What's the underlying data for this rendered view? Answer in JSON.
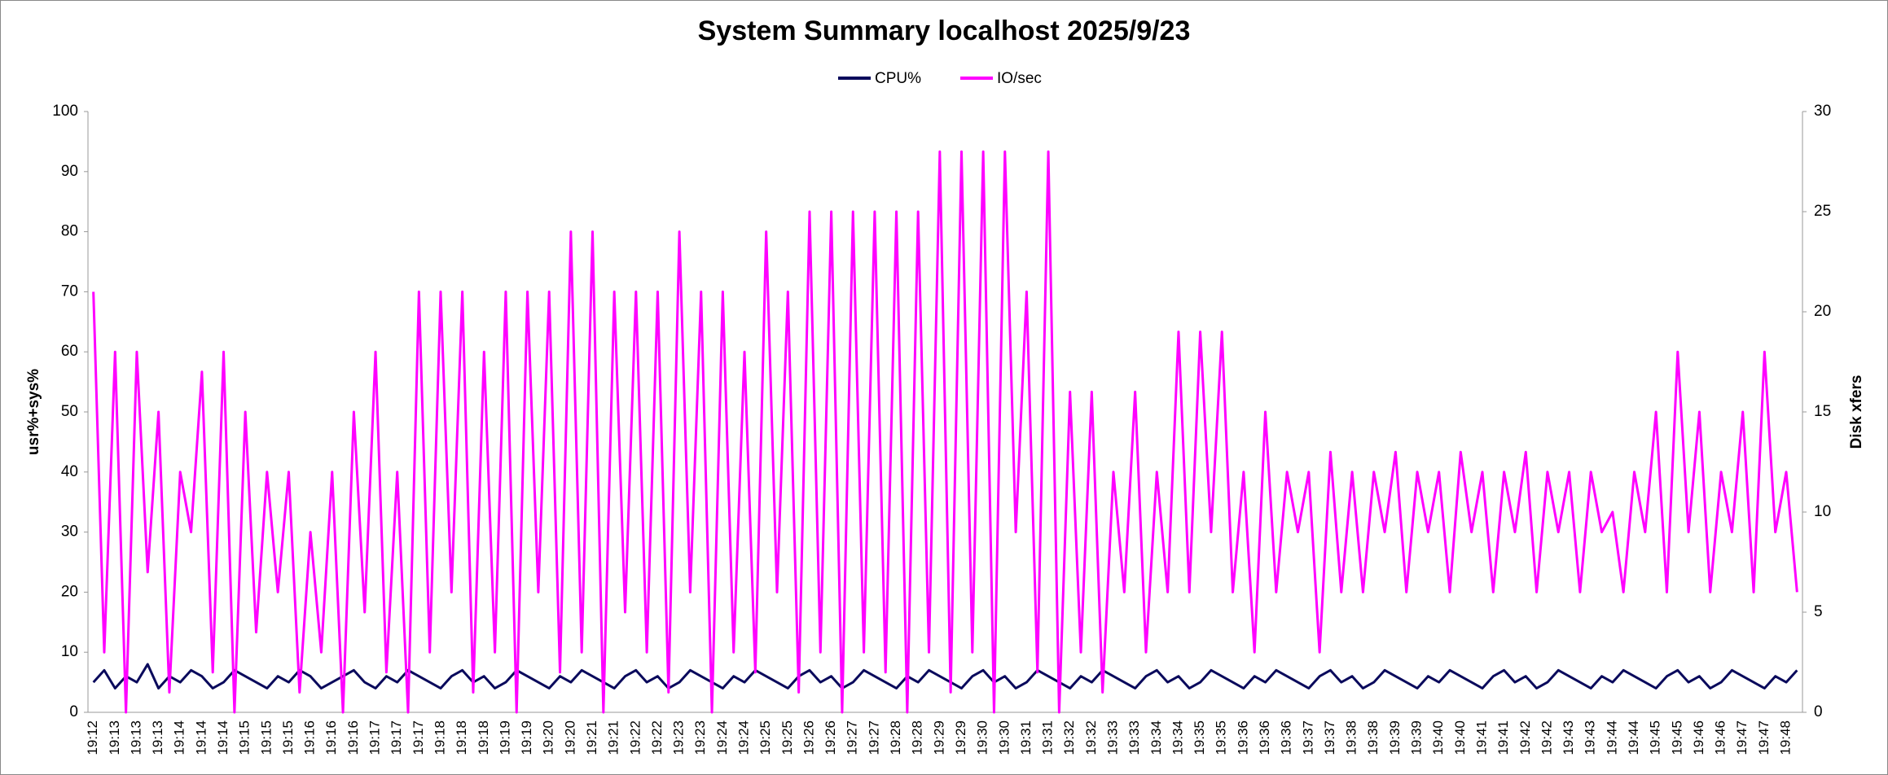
{
  "chart_data": {
    "type": "line",
    "title": "System Summary localhost  2025/9/23",
    "y_label": "usr%+sys%",
    "y2_label": "Disk xfers",
    "ylim": [
      0,
      100
    ],
    "yticks": [
      0,
      10,
      20,
      30,
      40,
      50,
      60,
      70,
      80,
      90,
      100
    ],
    "y2lim": [
      0,
      30
    ],
    "y2ticks": [
      0,
      5,
      10,
      15,
      20,
      25,
      30
    ],
    "grid": false,
    "legend": "top",
    "categories": [
      "19:12",
      null,
      "19:13",
      null,
      "19:13",
      null,
      "19:13",
      null,
      "19:14",
      null,
      "19:14",
      null,
      "19:14",
      null,
      "19:15",
      null,
      "19:15",
      null,
      "19:15",
      null,
      "19:16",
      null,
      "19:16",
      null,
      "19:16",
      null,
      "19:17",
      null,
      "19:17",
      null,
      "19:17",
      null,
      "19:18",
      null,
      "19:18",
      null,
      "19:18",
      null,
      "19:19",
      null,
      "19:19",
      null,
      "19:20",
      null,
      "19:20",
      null,
      "19:21",
      null,
      "19:21",
      null,
      "19:22",
      null,
      "19:22",
      null,
      "19:23",
      null,
      "19:23",
      null,
      "19:24",
      null,
      "19:24",
      null,
      "19:25",
      null,
      "19:25",
      null,
      "19:26",
      null,
      "19:26",
      null,
      "19:27",
      null,
      "19:27",
      null,
      "19:28",
      null,
      "19:28",
      null,
      "19:29",
      null,
      "19:29",
      null,
      "19:30",
      null,
      "19:30",
      null,
      "19:31",
      null,
      "19:31",
      null,
      "19:32",
      null,
      "19:32",
      null,
      "19:33",
      null,
      "19:33",
      null,
      "19:34",
      null,
      "19:34",
      null,
      "19:35",
      null,
      "19:35",
      null,
      "19:36",
      null,
      "19:36",
      null,
      "19:36",
      null,
      "19:37",
      null,
      "19:37",
      null,
      "19:38",
      null,
      "19:38",
      null,
      "19:39",
      null,
      "19:39",
      null,
      "19:40",
      null,
      "19:40",
      null,
      "19:41",
      null,
      "19:41",
      null,
      "19:42",
      null,
      "19:42",
      null,
      "19:43",
      null,
      "19:43",
      null,
      "19:44",
      null,
      "19:44",
      null,
      "19:45",
      null,
      "19:45",
      null,
      "19:46",
      null,
      "19:46",
      null,
      "19:47",
      null,
      "19:47",
      null,
      "19:48",
      null
    ],
    "series": [
      {
        "name": "CPU%",
        "color": "#0a0a5c",
        "axis": "y",
        "values": [
          5,
          7,
          4,
          6,
          5,
          8,
          4,
          6,
          5,
          7,
          6,
          4,
          5,
          7,
          6,
          5,
          4,
          6,
          5,
          7,
          6,
          4,
          5,
          6,
          7,
          5,
          4,
          6,
          5,
          7,
          6,
          5,
          4,
          6,
          7,
          5,
          6,
          4,
          5,
          7,
          6,
          5,
          4,
          6,
          5,
          7,
          6,
          5,
          4,
          6,
          7,
          5,
          6,
          4,
          5,
          7,
          6,
          5,
          4,
          6,
          5,
          7,
          6,
          5,
          4,
          6,
          7,
          5,
          6,
          4,
          5,
          7,
          6,
          5,
          4,
          6,
          5,
          7,
          6,
          5,
          4,
          6,
          7,
          5,
          6,
          4,
          5,
          7,
          6,
          5,
          4,
          6,
          5,
          7,
          6,
          5,
          4,
          6,
          7,
          5,
          6,
          4,
          5,
          7,
          6,
          5,
          4,
          6,
          5,
          7,
          6,
          5,
          4,
          6,
          7,
          5,
          6,
          4,
          5,
          7,
          6,
          5,
          4,
          6,
          5,
          7,
          6,
          5,
          4,
          6,
          7,
          5,
          6,
          4,
          5,
          7,
          6,
          5,
          4,
          6,
          5,
          7,
          6,
          5,
          4,
          6,
          7,
          5,
          6,
          4,
          5,
          7,
          6,
          5,
          4,
          6,
          5,
          7
        ]
      },
      {
        "name": "IO/sec",
        "color": "#ff00ff",
        "axis": "y2",
        "values": [
          21,
          3,
          18,
          0,
          18,
          7,
          15,
          1,
          12,
          9,
          17,
          2,
          18,
          0,
          15,
          4,
          12,
          6,
          12,
          1,
          9,
          3,
          12,
          0,
          15,
          5,
          18,
          2,
          12,
          0,
          21,
          3,
          21,
          6,
          21,
          1,
          18,
          3,
          21,
          0,
          21,
          6,
          21,
          2,
          24,
          3,
          24,
          0,
          21,
          5,
          21,
          3,
          21,
          1,
          24,
          6,
          21,
          0,
          21,
          3,
          18,
          2,
          24,
          6,
          21,
          1,
          25,
          3,
          25,
          0,
          25,
          3,
          25,
          2,
          25,
          0,
          25,
          3,
          28,
          1,
          28,
          3,
          28,
          0,
          28,
          9,
          21,
          2,
          28,
          0,
          16,
          3,
          16,
          1,
          12,
          6,
          16,
          3,
          12,
          6,
          19,
          6,
          19,
          9,
          19,
          6,
          12,
          3,
          15,
          6,
          12,
          9,
          12,
          3,
          13,
          6,
          12,
          6,
          12,
          9,
          13,
          6,
          12,
          9,
          12,
          6,
          13,
          9,
          12,
          6,
          12,
          9,
          13,
          6,
          12,
          9,
          12,
          6,
          12,
          9,
          10,
          6,
          12,
          9,
          15,
          6,
          18,
          9,
          15,
          6,
          12,
          9,
          15,
          6,
          18,
          9,
          12,
          6
        ]
      }
    ]
  }
}
